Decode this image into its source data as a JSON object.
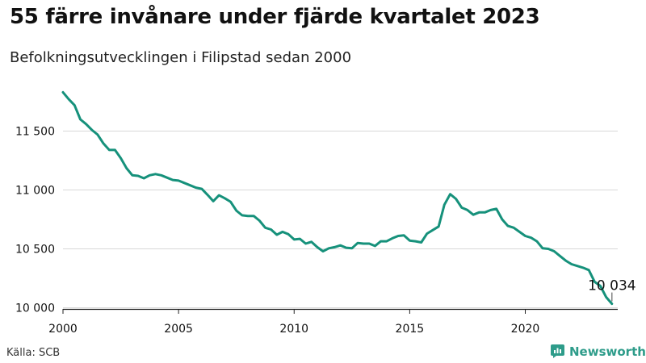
{
  "title": "55 färre invånare under fjärde kvartalet 2023",
  "subtitle": "Befolkningsutvecklingen i Filipstad sedan 2000",
  "source": "Källa: SCB",
  "brand": {
    "name": "Newsworthy",
    "icon": "newsworthy-logo-icon",
    "color": "#2e9c8a"
  },
  "chart_data": {
    "type": "line",
    "title": "55 färre invånare under fjärde kvartalet 2023",
    "subtitle": "Befolkningsutvecklingen i Filipstad sedan 2000",
    "xlabel": "",
    "ylabel": "",
    "grid": true,
    "line_color": "#16917b",
    "xlim": [
      2000,
      2024
    ],
    "ylim": [
      9990,
      11860
    ],
    "x_ticks": [
      {
        "value": 2000,
        "label": "2000"
      },
      {
        "value": 2005,
        "label": "2005"
      },
      {
        "value": 2010,
        "label": "2010"
      },
      {
        "value": 2015,
        "label": "2015"
      },
      {
        "value": 2020,
        "label": "2020"
      }
    ],
    "y_ticks": [
      {
        "value": 10000,
        "label": "10 000"
      },
      {
        "value": 10500,
        "label": "10 500"
      },
      {
        "value": 11000,
        "label": "11 000"
      },
      {
        "value": 11500,
        "label": "11 500"
      }
    ],
    "annotation": {
      "x": 2023.75,
      "y": 10034,
      "label": "10 034"
    },
    "series": [
      {
        "x": [
          2000.0,
          2000.25,
          2000.5,
          2000.75,
          2001.0,
          2001.25,
          2001.5,
          2001.75,
          2002.0,
          2002.25,
          2002.5,
          2002.75,
          2003.0,
          2003.25,
          2003.5,
          2003.75,
          2004.0,
          2004.25,
          2004.5,
          2004.75,
          2005.0,
          2005.25,
          2005.5,
          2005.75,
          2006.0,
          2006.25,
          2006.5,
          2006.75,
          2007.0,
          2007.25,
          2007.5,
          2007.75,
          2008.0,
          2008.25,
          2008.5,
          2008.75,
          2009.0,
          2009.25,
          2009.5,
          2009.75,
          2010.0,
          2010.25,
          2010.5,
          2010.75,
          2011.0,
          2011.25,
          2011.5,
          2011.75,
          2012.0,
          2012.25,
          2012.5,
          2012.75,
          2013.0,
          2013.25,
          2013.5,
          2013.75,
          2014.0,
          2014.25,
          2014.5,
          2014.75,
          2015.0,
          2015.25,
          2015.5,
          2015.75,
          2016.0,
          2016.25,
          2016.5,
          2016.75,
          2017.0,
          2017.25,
          2017.5,
          2017.75,
          2018.0,
          2018.25,
          2018.5,
          2018.75,
          2019.0,
          2019.25,
          2019.5,
          2019.75,
          2020.0,
          2020.25,
          2020.5,
          2020.75,
          2021.0,
          2021.25,
          2021.5,
          2021.75,
          2022.0,
          2022.25,
          2022.5,
          2022.75,
          2023.0,
          2023.25,
          2023.5,
          2023.75
        ],
        "values": [
          11830,
          11770,
          11720,
          11600,
          11560,
          11510,
          11470,
          11395,
          11340,
          11340,
          11270,
          11185,
          11125,
          11120,
          11100,
          11125,
          11135,
          11125,
          11105,
          11085,
          11080,
          11060,
          11040,
          11020,
          11010,
          10960,
          10905,
          10955,
          10930,
          10900,
          10825,
          10785,
          10780,
          10780,
          10740,
          10680,
          10665,
          10620,
          10645,
          10625,
          10580,
          10585,
          10545,
          10560,
          10515,
          10480,
          10505,
          10515,
          10530,
          10510,
          10505,
          10550,
          10545,
          10545,
          10525,
          10565,
          10565,
          10590,
          10610,
          10615,
          10570,
          10565,
          10555,
          10630,
          10660,
          10690,
          10875,
          10965,
          10925,
          10850,
          10830,
          10790,
          10810,
          10810,
          10830,
          10840,
          10750,
          10695,
          10680,
          10645,
          10610,
          10595,
          10565,
          10505,
          10500,
          10480,
          10440,
          10400,
          10370,
          10355,
          10340,
          10320,
          10220,
          10185,
          10090,
          10034
        ]
      }
    ]
  }
}
